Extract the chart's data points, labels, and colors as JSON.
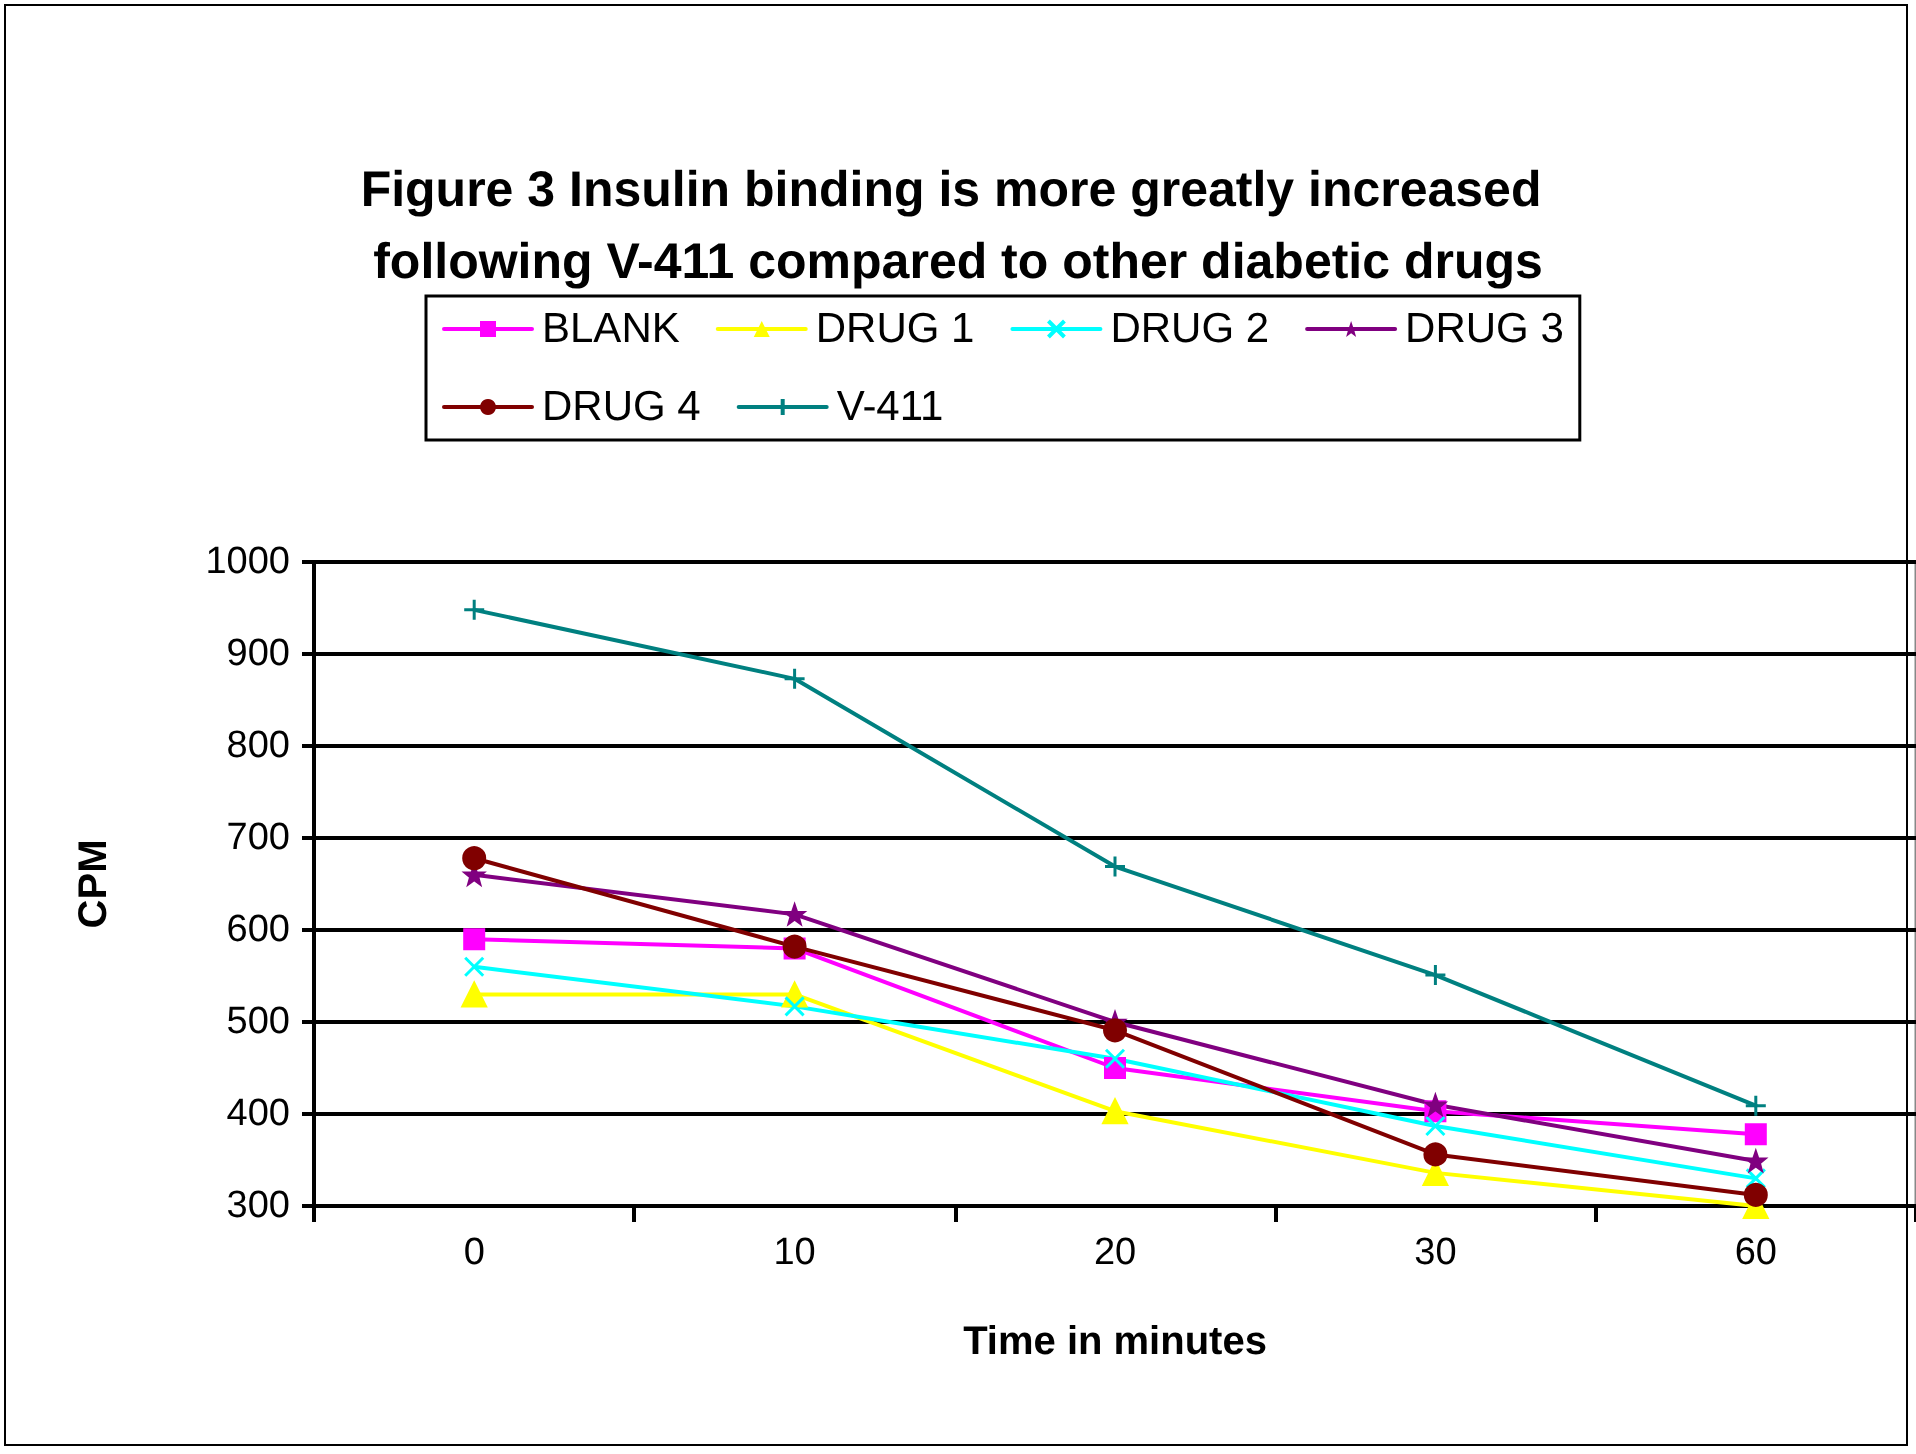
{
  "chart_data": {
    "type": "line",
    "title": "Figure 3 Insulin binding is more greatly increased following V-411 compared to other diabetic drugs",
    "xlabel": "Time in minutes",
    "ylabel": "CPM",
    "categories": [
      "0",
      "10",
      "20",
      "30",
      "60"
    ],
    "ylim": [
      300,
      1000
    ],
    "yticks": [
      300,
      400,
      500,
      600,
      700,
      800,
      900,
      1000
    ],
    "grid": "y",
    "legend": "top",
    "line_style": "solid",
    "series": [
      {
        "name": "BLANK",
        "color": "#ff00ff",
        "marker": "square",
        "values": [
          590,
          580,
          450,
          403,
          378
        ]
      },
      {
        "name": "DRUG 1",
        "color": "#ffff00",
        "marker": "triangle",
        "values": [
          530,
          530,
          403,
          336,
          300
        ]
      },
      {
        "name": "DRUG 2",
        "color": "#00ffff",
        "marker": "cross",
        "values": [
          560,
          517,
          460,
          387,
          330
        ]
      },
      {
        "name": "DRUG 3",
        "color": "#800080",
        "marker": "star",
        "values": [
          660,
          617,
          500,
          410,
          349
        ]
      },
      {
        "name": "DRUG 4",
        "color": "#800000",
        "marker": "circle",
        "values": [
          678,
          582,
          491,
          356,
          312
        ]
      },
      {
        "name": "V-411",
        "color": "#008080",
        "marker": "plus",
        "values": [
          948,
          873,
          669,
          551,
          409
        ]
      }
    ]
  }
}
